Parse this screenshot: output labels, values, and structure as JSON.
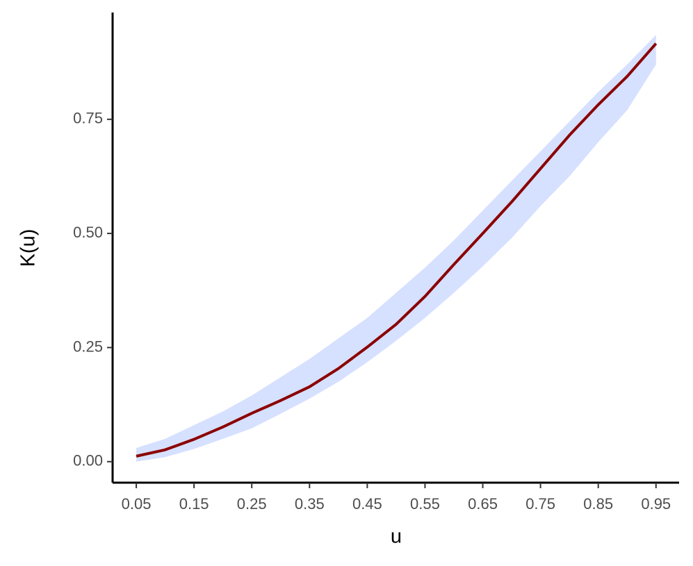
{
  "chart_data": {
    "type": "line",
    "xlabel": "u",
    "ylabel": "K(u)",
    "x": [
      0.05,
      0.1,
      0.15,
      0.2,
      0.25,
      0.3,
      0.35,
      0.4,
      0.45,
      0.5,
      0.55,
      0.6,
      0.65,
      0.7,
      0.75,
      0.8,
      0.85,
      0.9,
      0.95
    ],
    "values": [
      0.012,
      0.026,
      0.049,
      0.076,
      0.106,
      0.134,
      0.164,
      0.204,
      0.251,
      0.301,
      0.362,
      0.432,
      0.5,
      0.569,
      0.642,
      0.715,
      0.782,
      0.844,
      0.916
    ],
    "color": "#8b0000",
    "band": {
      "color": "#d6e0ff",
      "lower": [
        0.0,
        0.01,
        0.028,
        0.05,
        0.073,
        0.105,
        0.138,
        0.175,
        0.218,
        0.265,
        0.315,
        0.37,
        0.428,
        0.49,
        0.56,
        0.625,
        0.7,
        0.77,
        0.87
      ],
      "upper": [
        0.03,
        0.05,
        0.08,
        0.11,
        0.145,
        0.185,
        0.225,
        0.27,
        0.315,
        0.37,
        0.425,
        0.485,
        0.55,
        0.615,
        0.68,
        0.745,
        0.81,
        0.87,
        0.935
      ]
    },
    "xlim": [
      0.009,
      0.99
    ],
    "ylim": [
      -0.046,
      0.984
    ],
    "xticks": [
      0.05,
      0.15,
      0.25,
      0.35,
      0.45,
      0.55,
      0.65,
      0.75,
      0.85,
      0.95
    ],
    "yticks": [
      {
        "value": 0,
        "label": "0.00"
      },
      0.25,
      {
        "value": 0.5,
        "label": "0.50"
      },
      0.75
    ]
  }
}
